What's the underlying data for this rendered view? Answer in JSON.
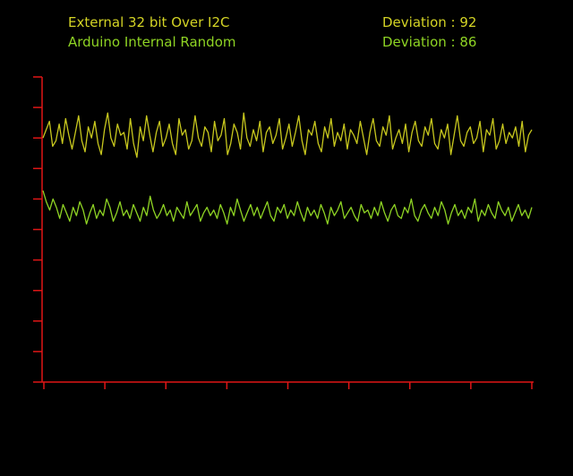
{
  "chart_data": {
    "type": "line",
    "title": "",
    "xlabel": "",
    "ylabel": "",
    "grid": false,
    "legend_placement": "top",
    "axis_color": "#e01616",
    "background": "#000000",
    "x_tick_count": 9,
    "y_tick_count": 11,
    "series": [
      {
        "name": "External 32 bit Over I2C",
        "deviation_label": "Deviation : 92",
        "color": "#c8c81e",
        "values": [
          8.8,
          9.1,
          9.4,
          8.5,
          8.7,
          9.3,
          8.6,
          9.5,
          8.9,
          8.4,
          9.0,
          9.6,
          8.7,
          8.3,
          9.2,
          8.8,
          9.4,
          8.6,
          8.2,
          9.1,
          9.7,
          8.8,
          8.5,
          9.3,
          8.9,
          9.0,
          8.4,
          9.5,
          8.6,
          8.1,
          9.2,
          8.7,
          9.6,
          8.9,
          8.3,
          9.0,
          9.4,
          8.5,
          8.8,
          9.3,
          8.6,
          8.2,
          9.5,
          8.9,
          9.1,
          8.4,
          8.7,
          9.6,
          8.8,
          8.5,
          9.2,
          9.0,
          8.3,
          9.4,
          8.7,
          8.9,
          9.5,
          8.2,
          8.6,
          9.3,
          9.0,
          8.4,
          9.7,
          8.8,
          8.5,
          9.1,
          8.7,
          9.4,
          8.3,
          9.0,
          9.2,
          8.6,
          8.9,
          9.5,
          8.4,
          8.8,
          9.3,
          8.5,
          9.0,
          9.6,
          8.7,
          8.2,
          9.1,
          8.9,
          9.4,
          8.6,
          8.3,
          9.2,
          8.8,
          9.5,
          8.5,
          9.0,
          8.7,
          9.3,
          8.4,
          9.1,
          8.9,
          8.6,
          9.4,
          8.8,
          8.2,
          9.0,
          9.5,
          8.7,
          8.5,
          9.2,
          8.9,
          9.6,
          8.4,
          8.8,
          9.1,
          8.6,
          9.3,
          8.3,
          9.0,
          9.4,
          8.7,
          8.5,
          9.2,
          8.9,
          9.5,
          8.6,
          8.4,
          9.1,
          8.8,
          9.3,
          8.2,
          8.9,
          9.6,
          8.7,
          8.5,
          9.0,
          9.2,
          8.6,
          8.8,
          9.4,
          8.3,
          9.1,
          8.9,
          9.5,
          8.4,
          8.7,
          9.3,
          8.6,
          9.0,
          8.8,
          9.2,
          8.5,
          9.4,
          8.3,
          8.9,
          9.1
        ]
      },
      {
        "name": "Arduino Internal Random",
        "deviation_label": "Deviation : 86",
        "color": "#8fd424",
        "values": [
          6.9,
          6.5,
          6.2,
          6.6,
          6.3,
          5.9,
          6.4,
          6.1,
          5.8,
          6.3,
          6.0,
          6.5,
          6.2,
          5.7,
          6.1,
          6.4,
          5.9,
          6.2,
          6.0,
          6.6,
          6.3,
          5.8,
          6.1,
          6.5,
          6.0,
          6.2,
          5.9,
          6.4,
          6.1,
          5.8,
          6.3,
          6.0,
          6.7,
          6.2,
          5.9,
          6.1,
          6.4,
          6.0,
          6.2,
          5.8,
          6.3,
          6.1,
          5.9,
          6.5,
          6.0,
          6.2,
          6.4,
          5.8,
          6.1,
          6.3,
          6.0,
          6.2,
          5.9,
          6.4,
          6.1,
          5.7,
          6.3,
          6.0,
          6.6,
          6.2,
          5.8,
          6.1,
          6.4,
          6.0,
          6.3,
          5.9,
          6.2,
          6.5,
          6.0,
          5.8,
          6.3,
          6.1,
          6.4,
          5.9,
          6.2,
          6.0,
          6.5,
          6.1,
          5.8,
          6.3,
          6.0,
          6.2,
          5.9,
          6.4,
          6.1,
          5.7,
          6.3,
          6.0,
          6.2,
          6.5,
          5.9,
          6.1,
          6.3,
          6.0,
          5.8,
          6.4,
          6.1,
          6.2,
          5.9,
          6.3,
          6.0,
          6.5,
          6.1,
          5.8,
          6.2,
          6.4,
          6.0,
          5.9,
          6.3,
          6.1,
          6.6,
          6.0,
          5.8,
          6.2,
          6.4,
          6.1,
          5.9,
          6.3,
          6.0,
          6.5,
          6.2,
          5.7,
          6.1,
          6.4,
          6.0,
          6.2,
          5.9,
          6.3,
          6.1,
          6.6,
          5.8,
          6.2,
          6.0,
          6.4,
          6.1,
          5.9,
          6.5,
          6.2,
          6.0,
          6.3,
          5.8,
          6.1,
          6.4,
          6.0,
          6.2,
          5.9,
          6.3
        ]
      }
    ],
    "ylim": [
      0,
      11
    ]
  }
}
